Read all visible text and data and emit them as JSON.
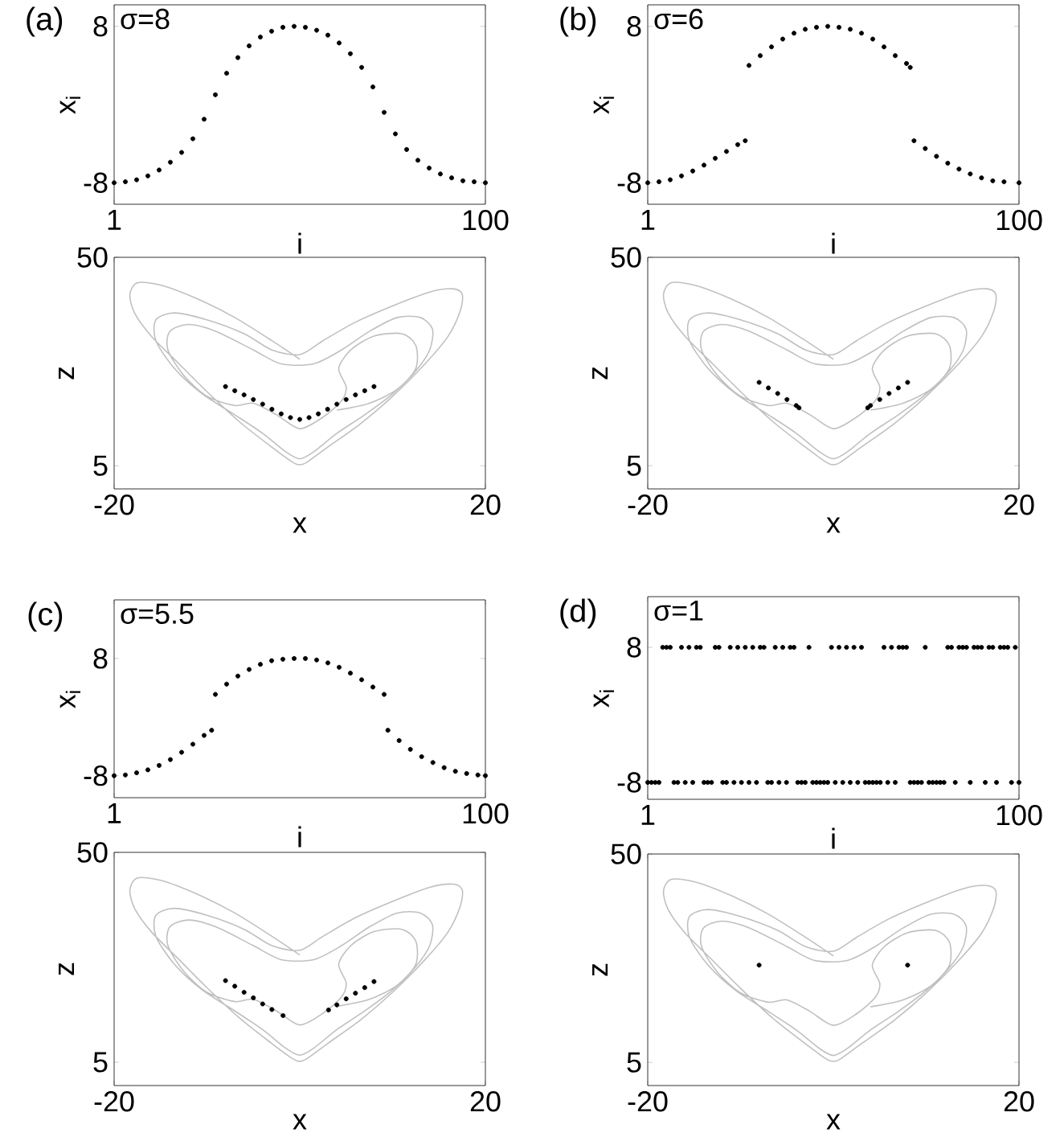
{
  "chart_data": [
    {
      "type": "scatter",
      "title": "(a)",
      "annotations": [
        "σ=8"
      ],
      "xlabel": "i",
      "ylabel": "x$_{i}$",
      "xlim": [
        1,
        100
      ],
      "ylim": [
        -10.2,
        10.2
      ],
      "xticks": [
        1,
        100
      ],
      "yticks": [
        -8,
        8
      ],
      "marker": "circle",
      "series": [
        {
          "color": "#000000",
          "x": [
            1,
            4,
            7,
            10,
            13,
            16,
            19,
            22,
            25,
            28,
            31,
            34,
            37,
            40,
            43,
            46,
            49,
            52,
            55,
            58,
            61,
            64,
            67,
            70,
            73,
            76,
            79,
            82,
            85,
            88,
            91,
            94,
            97,
            100
          ],
          "values": [
            -8,
            -7.9,
            -7.7,
            -7.3,
            -6.7,
            -5.9,
            -4.9,
            -3.5,
            -1.5,
            1,
            3.2,
            4.8,
            6,
            6.9,
            7.5,
            7.9,
            8,
            7.9,
            7.6,
            7.1,
            6.3,
            5.2,
            3.8,
            1.8,
            -0.8,
            -3,
            -4.6,
            -5.7,
            -6.5,
            -7.1,
            -7.5,
            -7.8,
            -7.9,
            -8
          ]
        }
      ]
    },
    {
      "type": "scatter",
      "title": "(b)",
      "annotations": [
        "σ=6"
      ],
      "xlabel": "i",
      "ylabel": "x$_{i}$",
      "xlim": [
        1,
        100
      ],
      "ylim": [
        -10.2,
        10.2
      ],
      "xticks": [
        1,
        100
      ],
      "yticks": [
        -8,
        8
      ],
      "marker": "circle",
      "series": [
        {
          "color": "#000000",
          "x": [
            1,
            4,
            7,
            10,
            13,
            16,
            19,
            22,
            25,
            27,
            28,
            31,
            34,
            37,
            40,
            43,
            46,
            49,
            52,
            55,
            58,
            61,
            64,
            67,
            70,
            71,
            72,
            75,
            78,
            81,
            84,
            87,
            90,
            93,
            96,
            100
          ],
          "values": [
            -8,
            -7.9,
            -7.7,
            -7.3,
            -6.8,
            -6.2,
            -5.5,
            -4.8,
            -4.1,
            -3.7,
            4,
            5,
            5.9,
            6.7,
            7.3,
            7.7,
            7.9,
            8,
            7.9,
            7.7,
            7.3,
            6.7,
            5.9,
            5,
            4.2,
            3.8,
            -3.7,
            -4.5,
            -5.3,
            -6,
            -6.6,
            -7.1,
            -7.5,
            -7.8,
            -7.9,
            -8
          ]
        }
      ]
    },
    {
      "type": "line",
      "xlabel": "x",
      "ylabel": "z",
      "xlim": [
        -20,
        20
      ],
      "ylim": [
        0,
        50
      ],
      "xticks": [
        -20,
        20
      ],
      "yticks": [
        5,
        50
      ],
      "series": [
        {
          "type": "line",
          "color": "#c0c0c0",
          "x": [
            0,
            -3,
            -7,
            -11,
            -15,
            -17.5,
            -18.3,
            -17.8,
            -16,
            -13,
            -10,
            -6.5,
            -3,
            -0.8,
            0,
            0.8,
            3,
            6.5,
            10,
            13.5,
            16,
            17.3,
            17.5,
            16.5,
            14,
            10,
            6,
            2.5,
            0,
            -3,
            -6,
            -10,
            -13.5,
            -15.5,
            -15.5,
            -13.5,
            -10.5,
            -7,
            -4,
            -1.5,
            0,
            1.5,
            4,
            7,
            10,
            12.5,
            14,
            14.3,
            13,
            10.5,
            7.5,
            4.5,
            1.5,
            -2,
            -5,
            -9,
            -12,
            -14,
            -14.2,
            -12.5,
            -10,
            -7,
            -5,
            -2.5,
            0,
            2.5,
            4.5,
            5,
            4.2,
            5.5,
            8,
            11,
            12.5,
            12.5,
            10.5,
            7.5,
            4
          ],
          "values": [
            28,
            32,
            37,
            41,
            44,
            44.5,
            42,
            38,
            33,
            27,
            21,
            14.5,
            9,
            5.8,
            5.2,
            5.8,
            9,
            14,
            20,
            27,
            33,
            38.5,
            42,
            43.2,
            42.5,
            39.5,
            36,
            32,
            29,
            30,
            33.5,
            36.5,
            38,
            36.5,
            32,
            26,
            20.5,
            16,
            12,
            8,
            6.5,
            8,
            12,
            16,
            20.5,
            25.5,
            30,
            34.5,
            37,
            37,
            34,
            30,
            27,
            27,
            30,
            34,
            35.5,
            34,
            30,
            24.5,
            20,
            18,
            18.5,
            16,
            13,
            15.5,
            19,
            22,
            26,
            30,
            33,
            33.5,
            31,
            26,
            21.5,
            18.5,
            17
          ]
        },
        {
          "type": "scatter",
          "marker": "circle",
          "color": "#000000",
          "x": [
            -8,
            -7,
            -6,
            -5,
            -4,
            -3,
            -2,
            -1,
            0,
            1,
            2,
            3,
            4,
            5,
            6,
            7,
            8
          ],
          "values": [
            22.1,
            21.2,
            20.3,
            19.3,
            18.3,
            17.2,
            16.2,
            15.4,
            15,
            15.4,
            16.2,
            17.2,
            18.3,
            19.3,
            20.3,
            21.2,
            22.1
          ]
        }
      ]
    },
    {
      "type": "line",
      "xlabel": "x",
      "ylabel": "z",
      "xlim": [
        -20,
        20
      ],
      "ylim": [
        0,
        50
      ],
      "xticks": [
        -20,
        20
      ],
      "yticks": [
        5,
        50
      ],
      "series": [
        {
          "type": "line",
          "color": "#c0c0c0",
          "x": [
            0,
            -3,
            -7,
            -11,
            -15,
            -17.5,
            -18.3,
            -17.8,
            -16,
            -13,
            -10,
            -6.5,
            -3,
            -0.8,
            0,
            0.8,
            3,
            6.5,
            10,
            13.5,
            16,
            17.3,
            17.5,
            16.5,
            14,
            10,
            6,
            2.5,
            0,
            -3,
            -6,
            -10,
            -13.5,
            -15.5,
            -15.5,
            -13.5,
            -10.5,
            -7,
            -4,
            -1.5,
            0,
            1.5,
            4,
            7,
            10,
            12.5,
            14,
            14.3,
            13,
            10.5,
            7.5,
            4.5,
            1.5,
            -2,
            -5,
            -9,
            -12,
            -14,
            -14.2,
            -12.5,
            -10,
            -7,
            -5,
            -2.5,
            0,
            2.5,
            4.5,
            5,
            4.2,
            5.5,
            8,
            11,
            12.5,
            12.5,
            10.5,
            7.5,
            4
          ],
          "values": [
            28,
            32,
            37,
            41,
            44,
            44.5,
            42,
            38,
            33,
            27,
            21,
            14.5,
            9,
            5.8,
            5.2,
            5.8,
            9,
            14,
            20,
            27,
            33,
            38.5,
            42,
            43.2,
            42.5,
            39.5,
            36,
            32,
            29,
            30,
            33.5,
            36.5,
            38,
            36.5,
            32,
            26,
            20.5,
            16,
            12,
            8,
            6.5,
            8,
            12,
            16,
            20.5,
            25.5,
            30,
            34.5,
            37,
            37,
            34,
            30,
            27,
            27,
            30,
            34,
            35.5,
            34,
            30,
            24.5,
            20,
            18,
            18.5,
            16,
            13,
            15.5,
            19,
            22,
            26,
            30,
            33,
            33.5,
            31,
            26,
            21.5,
            18.5,
            17
          ]
        },
        {
          "type": "scatter",
          "marker": "circle",
          "color": "#000000",
          "x": [
            -8,
            -7,
            -6,
            -5,
            -4,
            -3.7,
            3.7,
            4,
            5,
            6,
            7,
            8
          ],
          "values": [
            23,
            21.8,
            20.6,
            19.3,
            18,
            17.5,
            17.5,
            18,
            19.3,
            20.6,
            21.8,
            23
          ]
        }
      ]
    },
    {
      "type": "scatter",
      "title": "(c)",
      "annotations": [
        "σ=5.5"
      ],
      "xlabel": "i",
      "ylabel": "x$_{i}$",
      "xlim": [
        1,
        100
      ],
      "ylim": [
        -11,
        16
      ],
      "xticks": [
        1,
        100
      ],
      "yticks": [
        -8,
        8
      ],
      "marker": "circle",
      "series": [
        {
          "color": "#000000",
          "x": [
            1,
            4,
            7,
            10,
            13,
            16,
            19,
            22,
            25,
            27,
            28,
            31,
            34,
            37,
            40,
            43,
            46,
            49,
            52,
            55,
            58,
            61,
            64,
            67,
            70,
            73,
            74,
            77,
            80,
            83,
            86,
            89,
            92,
            95,
            98,
            100
          ],
          "values": [
            -8,
            -7.9,
            -7.6,
            -7.2,
            -6.6,
            -5.8,
            -4.8,
            -3.7,
            -2.5,
            -1.8,
            3.1,
            4.5,
            5.6,
            6.5,
            7.2,
            7.7,
            7.9,
            8,
            8,
            7.8,
            7.4,
            6.8,
            6,
            5.1,
            4.1,
            3.1,
            -1.8,
            -3.2,
            -4.4,
            -5.4,
            -6.2,
            -6.9,
            -7.4,
            -7.7,
            -7.9,
            -8
          ]
        }
      ]
    },
    {
      "type": "scatter",
      "title": "(d)",
      "annotations": [
        "σ=1"
      ],
      "xlabel": "i",
      "ylabel": "x$_{i}$",
      "xlim": [
        1,
        100
      ],
      "ylim": [
        -10,
        14
      ],
      "xticks": [
        1,
        100
      ],
      "yticks": [
        -8,
        8
      ],
      "marker": "circle",
      "series": [
        {
          "color": "#000000",
          "x": [
            1,
            2,
            3,
            4,
            5,
            6,
            7,
            8,
            9,
            10,
            11,
            12,
            13,
            14,
            15,
            16,
            17,
            18,
            19,
            20,
            21,
            22,
            23,
            24,
            25,
            26,
            27,
            28,
            29,
            30,
            31,
            32,
            33,
            34,
            35,
            36,
            37,
            38,
            39,
            40,
            41,
            42,
            43,
            44,
            45,
            46,
            47,
            48,
            49,
            50,
            51,
            52,
            53,
            54,
            55,
            56,
            57,
            58,
            59,
            60,
            61,
            62,
            63,
            64,
            65,
            66,
            67,
            68,
            69,
            70,
            71,
            72,
            73,
            74,
            75,
            76,
            77,
            78,
            79,
            80,
            81,
            82,
            83,
            84,
            85,
            86,
            87,
            88,
            89,
            90,
            91,
            92,
            93,
            94,
            95,
            96,
            97,
            98,
            99,
            100
          ],
          "values": [
            -8,
            -8,
            -8,
            -8,
            8,
            8,
            8,
            -8,
            -8,
            8,
            -8,
            8,
            -8,
            8,
            8,
            -8,
            -8,
            -8,
            8,
            8,
            -8,
            -8,
            8,
            -8,
            8,
            -8,
            8,
            -8,
            8,
            -8,
            8,
            8,
            -8,
            -8,
            8,
            -8,
            8,
            -8,
            8,
            8,
            -8,
            -8,
            -8,
            8,
            -8,
            -8,
            -8,
            -8,
            -8,
            8,
            -8,
            8,
            -8,
            8,
            -8,
            8,
            -8,
            8,
            -8,
            -8,
            -8,
            -8,
            -8,
            8,
            -8,
            8,
            -8,
            8,
            8,
            8,
            -8,
            -8,
            -8,
            -8,
            8,
            -8,
            -8,
            -8,
            -8,
            -8,
            8,
            8,
            -8,
            8,
            8,
            8,
            -8,
            8,
            8,
            8,
            -8,
            8,
            8,
            -8,
            8,
            8,
            8,
            -8,
            8,
            -8
          ]
        }
      ]
    },
    {
      "type": "line",
      "xlabel": "x",
      "ylabel": "z",
      "xlim": [
        -20,
        20
      ],
      "ylim": [
        0,
        50
      ],
      "xticks": [
        -20,
        20
      ],
      "yticks": [
        5,
        50
      ],
      "series": [
        {
          "type": "line",
          "color": "#c0c0c0",
          "x": [
            0,
            -3,
            -7,
            -11,
            -15,
            -17.5,
            -18.3,
            -17.8,
            -16,
            -13,
            -10,
            -6.5,
            -3,
            -0.8,
            0,
            0.8,
            3,
            6.5,
            10,
            13.5,
            16,
            17.3,
            17.5,
            16.5,
            14,
            10,
            6,
            2.5,
            0,
            -3,
            -6,
            -10,
            -13.5,
            -15.5,
            -15.5,
            -13.5,
            -10.5,
            -7,
            -4,
            -1.5,
            0,
            1.5,
            4,
            7,
            10,
            12.5,
            14,
            14.3,
            13,
            10.5,
            7.5,
            4.5,
            1.5,
            -2,
            -5,
            -9,
            -12,
            -14,
            -14.2,
            -12.5,
            -10,
            -7,
            -5,
            -2.5,
            0,
            2.5,
            4.5,
            5,
            4.2,
            5.5,
            8,
            11,
            12.5,
            12.5,
            10.5,
            7.5,
            4
          ],
          "values": [
            28,
            32,
            37,
            41,
            44,
            44.5,
            42,
            38,
            33,
            27,
            21,
            14.5,
            9,
            5.8,
            5.2,
            5.8,
            9,
            14,
            20,
            27,
            33,
            38.5,
            42,
            43.2,
            42.5,
            39.5,
            36,
            32,
            29,
            30,
            33.5,
            36.5,
            38,
            36.5,
            32,
            26,
            20.5,
            16,
            12,
            8,
            6.5,
            8,
            12,
            16,
            20.5,
            25.5,
            30,
            34.5,
            37,
            37,
            34,
            30,
            27,
            27,
            30,
            34,
            35.5,
            34,
            30,
            24.5,
            20,
            18,
            18.5,
            16,
            13,
            15.5,
            19,
            22,
            26,
            30,
            33,
            33.5,
            31,
            26,
            21.5,
            18.5,
            17
          ]
        },
        {
          "type": "scatter",
          "marker": "circle",
          "color": "#000000",
          "x": [
            -8,
            -7,
            -6,
            -5,
            -4,
            -3,
            -1.8,
            3.1,
            4,
            5,
            6,
            7,
            8
          ],
          "values": [
            22.5,
            21.3,
            20,
            18.8,
            17.5,
            16.3,
            15,
            16.2,
            17.3,
            18.6,
            19.8,
            21,
            22.3
          ]
        }
      ]
    },
    {
      "type": "line",
      "xlabel": "x",
      "ylabel": "z",
      "xlim": [
        -20,
        20
      ],
      "ylim": [
        0,
        50
      ],
      "xticks": [
        -20,
        20
      ],
      "yticks": [
        5,
        50
      ],
      "series": [
        {
          "type": "line",
          "color": "#c0c0c0",
          "x": [
            0,
            -3,
            -7,
            -11,
            -15,
            -17.5,
            -18.3,
            -17.8,
            -16,
            -13,
            -10,
            -6.5,
            -3,
            -0.8,
            0,
            0.8,
            3,
            6.5,
            10,
            13.5,
            16,
            17.3,
            17.5,
            16.5,
            14,
            10,
            6,
            2.5,
            0,
            -3,
            -6,
            -10,
            -13.5,
            -15.5,
            -15.5,
            -13.5,
            -10.5,
            -7,
            -4,
            -1.5,
            0,
            1.5,
            4,
            7,
            10,
            12.5,
            14,
            14.3,
            13,
            10.5,
            7.5,
            4.5,
            1.5,
            -2,
            -5,
            -9,
            -12,
            -14,
            -14.2,
            -12.5,
            -10,
            -7,
            -5,
            -2.5,
            0,
            2.5,
            4.5,
            5,
            4.2,
            5.5,
            8,
            11,
            12.5,
            12.5,
            10.5,
            7.5,
            4
          ],
          "values": [
            28,
            32,
            37,
            41,
            44,
            44.5,
            42,
            38,
            33,
            27,
            21,
            14.5,
            9,
            5.8,
            5.2,
            5.8,
            9,
            14,
            20,
            27,
            33,
            38.5,
            42,
            43.2,
            42.5,
            39.5,
            36,
            32,
            29,
            30,
            33.5,
            36.5,
            38,
            36.5,
            32,
            26,
            20.5,
            16,
            12,
            8,
            6.5,
            8,
            12,
            16,
            20.5,
            25.5,
            30,
            34.5,
            37,
            37,
            34,
            30,
            27,
            27,
            30,
            34,
            35.5,
            34,
            30,
            24.5,
            20,
            18,
            18.5,
            16,
            13,
            15.5,
            19,
            22,
            26,
            30,
            33,
            33.5,
            31,
            26,
            21.5,
            18.5,
            17
          ]
        },
        {
          "type": "scatter",
          "marker": "circle",
          "color": "#000000",
          "x": [
            -8,
            8
          ],
          "values": [
            26,
            26
          ]
        }
      ]
    }
  ]
}
